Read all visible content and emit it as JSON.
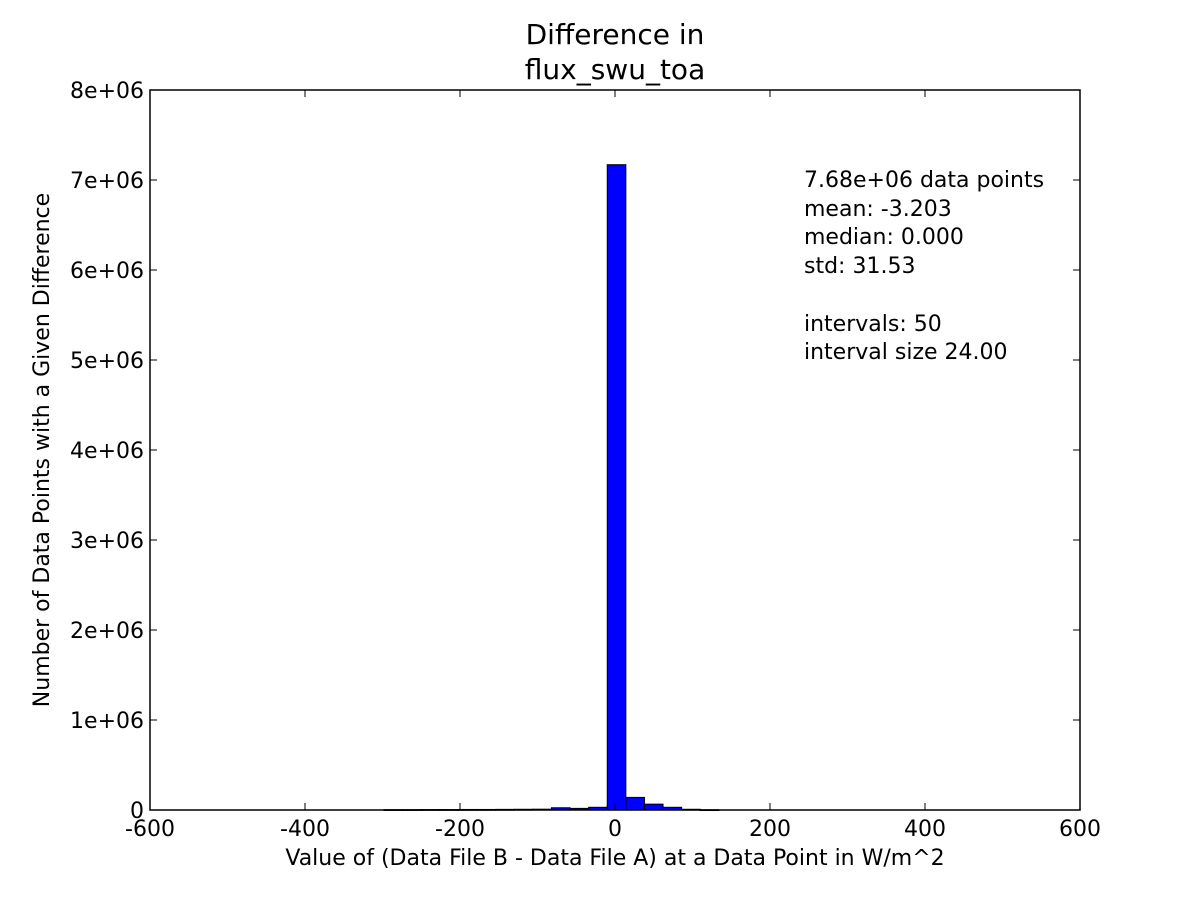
{
  "chart_data": {
    "type": "bar",
    "title_lines": [
      "Difference in",
      "flux_swu_toa"
    ],
    "xlabel": "Value of (Data File B - Data File A) at a Data Point in W/m^2",
    "ylabel": "Number of Data Points with a Given Difference",
    "xlim": [
      -600,
      600
    ],
    "ylim": [
      0,
      8000000
    ],
    "x_ticks": [
      -600,
      -400,
      -200,
      0,
      200,
      400,
      600
    ],
    "x_tick_labels": [
      "-600",
      "-400",
      "-200",
      "0",
      "200",
      "400",
      "600"
    ],
    "y_ticks": [
      0,
      1000000,
      2000000,
      3000000,
      4000000,
      5000000,
      6000000,
      7000000,
      8000000
    ],
    "y_tick_labels": [
      "0",
      "1e+06",
      "2e+06",
      "3e+06",
      "4e+06",
      "5e+06",
      "6e+06",
      "7e+06",
      "8e+06"
    ],
    "bin_width": 24,
    "bins": [
      {
        "left": -298,
        "value": 4000
      },
      {
        "left": -274,
        "value": 4000
      },
      {
        "left": -250,
        "value": 5000
      },
      {
        "left": -226,
        "value": 5000
      },
      {
        "left": -202,
        "value": 6000
      },
      {
        "left": -178,
        "value": 6000
      },
      {
        "left": -154,
        "value": 7000
      },
      {
        "left": -130,
        "value": 8000
      },
      {
        "left": -106,
        "value": 9000
      },
      {
        "left": -82,
        "value": 25000
      },
      {
        "left": -58,
        "value": 18000
      },
      {
        "left": -34,
        "value": 30000
      },
      {
        "left": -10,
        "value": 55000
      },
      {
        "left": -10,
        "value": 7170000
      },
      {
        "left": 14,
        "value": 140000
      },
      {
        "left": 38,
        "value": 65000
      },
      {
        "left": 62,
        "value": 30000
      },
      {
        "left": 86,
        "value": 8000
      },
      {
        "left": 110,
        "value": 3000
      }
    ],
    "bar_color": "#0000ff",
    "grid": false,
    "stats_lines": [
      "7.68e+06 data points",
      "mean: -3.203",
      "median: 0.000",
      "std: 31.53",
      "",
      "intervals: 50",
      "interval size 24.00"
    ]
  }
}
